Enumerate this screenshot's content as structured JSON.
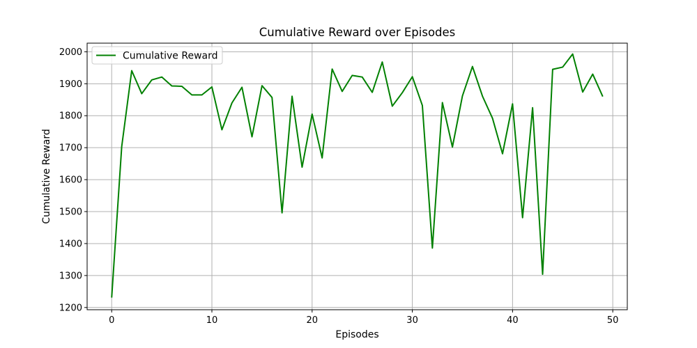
{
  "chart_data": {
    "type": "line",
    "title": "Cumulative Reward over Episodes",
    "xlabel": "Episodes",
    "ylabel": "Cumulative Reward",
    "xlim": [
      -2.45,
      51.45
    ],
    "ylim": [
      1193,
      2027
    ],
    "xticks": [
      0,
      10,
      20,
      30,
      40,
      50
    ],
    "yticks": [
      1200,
      1300,
      1400,
      1500,
      1600,
      1700,
      1800,
      1900,
      2000
    ],
    "grid": true,
    "legend": {
      "position": "upper-left",
      "entries": [
        "Cumulative Reward"
      ]
    },
    "series": [
      {
        "name": "Cumulative Reward",
        "color": "#008000",
        "x": [
          0,
          1,
          2,
          3,
          4,
          5,
          6,
          7,
          8,
          9,
          10,
          11,
          12,
          13,
          14,
          15,
          16,
          17,
          18,
          19,
          20,
          21,
          22,
          23,
          24,
          25,
          26,
          27,
          28,
          29,
          30,
          31,
          32,
          33,
          34,
          35,
          36,
          37,
          38,
          39,
          40,
          41,
          42,
          43,
          44,
          45,
          46,
          47,
          48,
          49
        ],
        "y": [
          1231,
          1703,
          1941,
          1869,
          1912,
          1921,
          1893,
          1892,
          1865,
          1865,
          1890,
          1756,
          1840,
          1889,
          1734,
          1894,
          1857,
          1496,
          1861,
          1639,
          1805,
          1668,
          1946,
          1876,
          1926,
          1921,
          1873,
          1968,
          1830,
          1872,
          1922,
          1832,
          1386,
          1841,
          1702,
          1862,
          1954,
          1861,
          1792,
          1681,
          1837,
          1481,
          1825,
          1304,
          1945,
          1952,
          1993,
          1874,
          1930,
          1860
        ]
      }
    ]
  }
}
